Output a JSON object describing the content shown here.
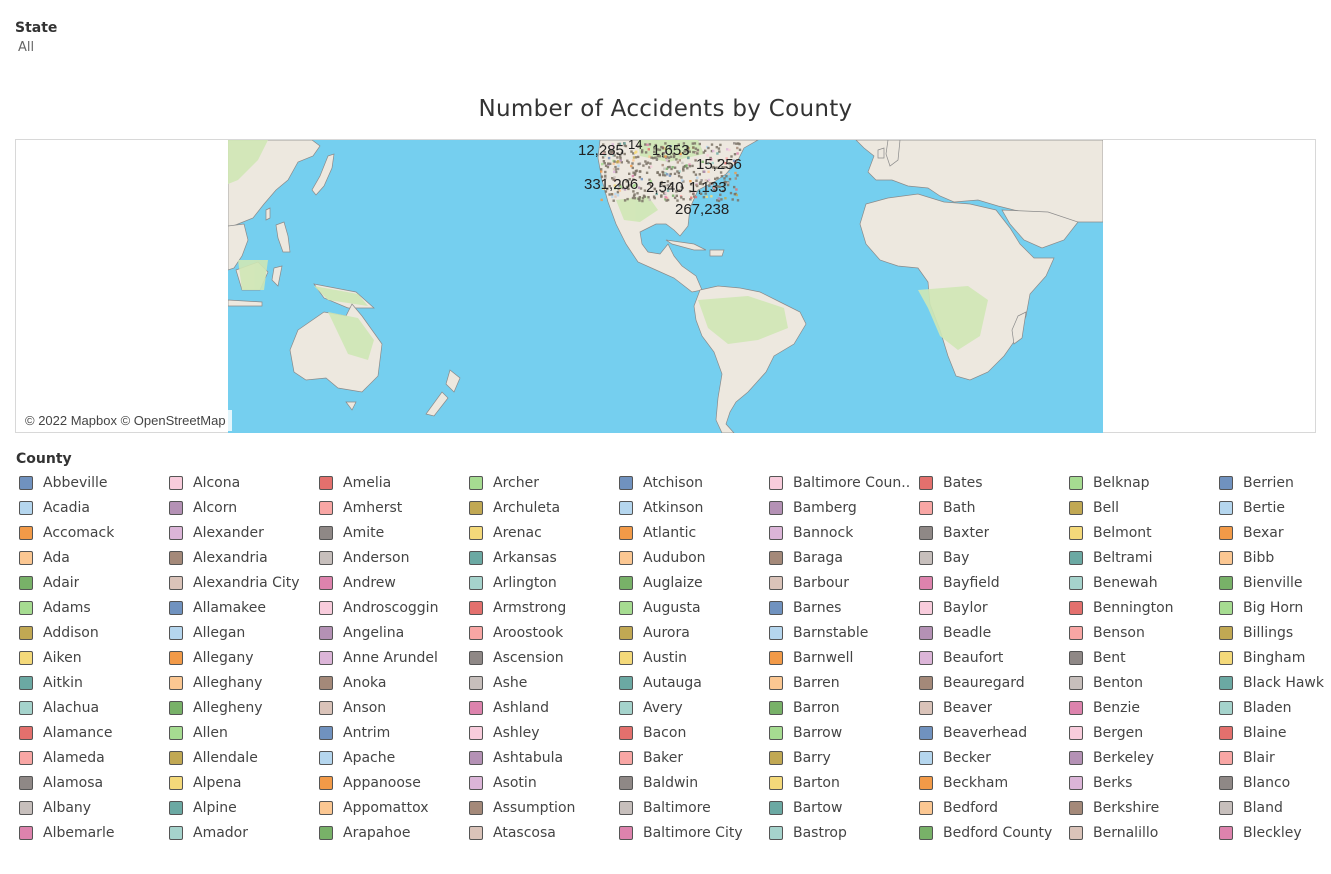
{
  "filter": {
    "label": "State",
    "value": "All"
  },
  "title": "Number of Accidents by County",
  "map": {
    "attribution": "© 2022 Mapbox © OpenStreetMap",
    "colors": {
      "ocean": "#75cfef",
      "land": "#ede8df",
      "green": "#cfe7b5",
      "border": "#6f6f6f"
    },
    "labels": [
      "12,285",
      "14",
      "1,653",
      "15,256",
      "331,206",
      "2,540",
      "1,133",
      "267,238"
    ]
  },
  "legend": {
    "title": "County",
    "palette": [
      "#7092bf",
      "#b5d6ee",
      "#f29a48",
      "#fbc792",
      "#78b168",
      "#a6dc91",
      "#c1a853",
      "#f4d97a",
      "#6ba9a3",
      "#a5d3cc",
      "#e3706d",
      "#f8a6a4",
      "#8f8886",
      "#c7bfbc",
      "#dd83ad",
      "#f8ccdc",
      "#b491b5",
      "#dcb5d8",
      "#a48979",
      "#dac3b9"
    ],
    "items": [
      "Abbeville",
      "Acadia",
      "Accomack",
      "Ada",
      "Adair",
      "Adams",
      "Addison",
      "Aiken",
      "Aitkin",
      "Alachua",
      "Alamance",
      "Alameda",
      "Alamosa",
      "Albany",
      "Albemarle",
      "Alcona",
      "Alcorn",
      "Alexander",
      "Alexandria",
      "Alexandria City",
      "Allamakee",
      "Allegan",
      "Allegany",
      "Alleghany",
      "Allegheny",
      "Allen",
      "Allendale",
      "Alpena",
      "Alpine",
      "Amador",
      "Amelia",
      "Amherst",
      "Amite",
      "Anderson",
      "Andrew",
      "Androscoggin",
      "Angelina",
      "Anne Arundel",
      "Anoka",
      "Anson",
      "Antrim",
      "Apache",
      "Appanoose",
      "Appomattox",
      "Arapahoe",
      "Archer",
      "Archuleta",
      "Arenac",
      "Arkansas",
      "Arlington",
      "Armstrong",
      "Aroostook",
      "Ascension",
      "Ashe",
      "Ashland",
      "Ashley",
      "Ashtabula",
      "Asotin",
      "Assumption",
      "Atascosa",
      "Atchison",
      "Atkinson",
      "Atlantic",
      "Audubon",
      "Auglaize",
      "Augusta",
      "Aurora",
      "Austin",
      "Autauga",
      "Avery",
      "Bacon",
      "Baker",
      "Baldwin",
      "Baltimore",
      "Baltimore City",
      "Baltimore Coun..",
      "Bamberg",
      "Bannock",
      "Baraga",
      "Barbour",
      "Barnes",
      "Barnstable",
      "Barnwell",
      "Barren",
      "Barron",
      "Barrow",
      "Barry",
      "Barton",
      "Bartow",
      "Bastrop",
      "Bates",
      "Bath",
      "Baxter",
      "Bay",
      "Bayfield",
      "Baylor",
      "Beadle",
      "Beaufort",
      "Beauregard",
      "Beaver",
      "Beaverhead",
      "Becker",
      "Beckham",
      "Bedford",
      "Bedford County",
      "Belknap",
      "Bell",
      "Belmont",
      "Beltrami",
      "Benewah",
      "Bennington",
      "Benson",
      "Bent",
      "Benton",
      "Benzie",
      "Bergen",
      "Berkeley",
      "Berks",
      "Berkshire",
      "Bernalillo",
      "Berrien",
      "Bertie",
      "Bexar",
      "Bibb",
      "Bienville",
      "Big Horn",
      "Billings",
      "Bingham",
      "Black Hawk",
      "Bladen",
      "Blaine",
      "Blair",
      "Blanco",
      "Bland",
      "Bleckley"
    ]
  }
}
